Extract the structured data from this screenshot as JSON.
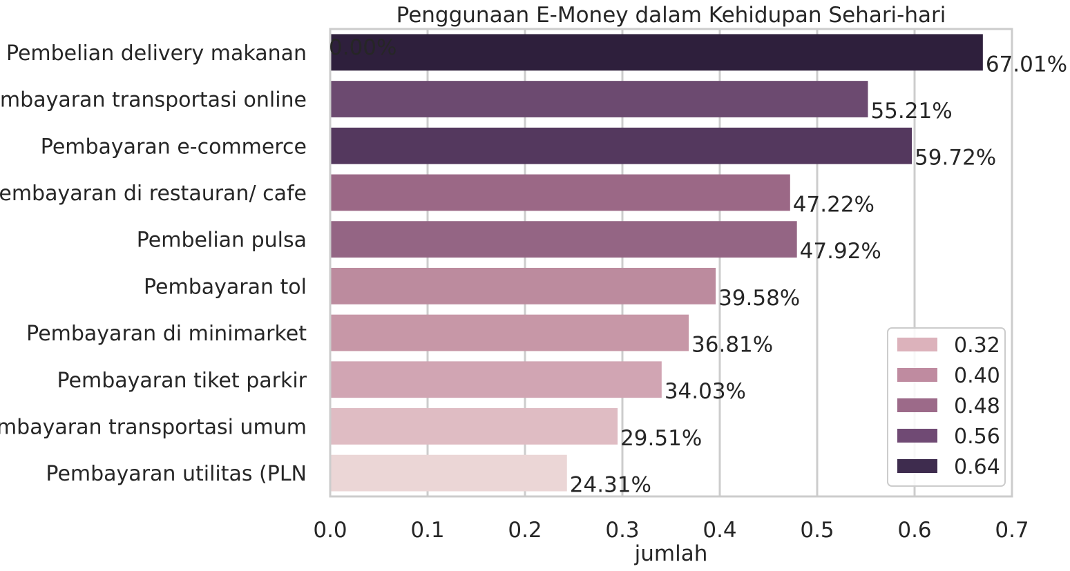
{
  "chart_data": {
    "type": "bar",
    "orientation": "horizontal",
    "title": "Penggunaan E-Money dalam Kehidupan Sehari-hari",
    "xlabel": "jumlah",
    "ylabel": "",
    "xlim": [
      0,
      0.7
    ],
    "x_ticks": [
      "0.0",
      "0.1",
      "0.2",
      "0.3",
      "0.4",
      "0.5",
      "0.6",
      "0.7"
    ],
    "grid": true,
    "categories": [
      "Pembelian delivery makanan",
      "Pembayaran transportasi online",
      "Pembayaran e-commerce",
      "Pembayaran di restauran/ cafe",
      "Pembelian pulsa",
      "Pembayaran tol",
      "Pembayaran di minimarket",
      "Pembayaran tiket parkir",
      "Pembayaran transportasi umum",
      "Pembayaran utilitas (PLN"
    ],
    "values": [
      0.6701,
      0.5521,
      0.5972,
      0.4722,
      0.4792,
      0.3958,
      0.3681,
      0.3403,
      0.2951,
      0.2431
    ],
    "bar_labels": [
      "67.01%",
      "55.21%",
      "59.72%",
      "47.22%",
      "47.92%",
      "39.58%",
      "36.81%",
      "34.03%",
      "29.51%",
      "24.31%"
    ],
    "extra_label": "0.00%",
    "bar_colors": [
      "#2e1f3c",
      "#6c4a70",
      "#54385e",
      "#9b6886",
      "#946584",
      "#bc8b9e",
      "#c797a7",
      "#d1a5b3",
      "#dfbcc3",
      "#ebd6d6"
    ],
    "legend": {
      "placement": "lower-right",
      "entries": [
        {
          "label": "0.32",
          "color": "#dcb2bb"
        },
        {
          "label": "0.40",
          "color": "#bf8ba0"
        },
        {
          "label": "0.48",
          "color": "#9c6a89"
        },
        {
          "label": "0.56",
          "color": "#704a74"
        },
        {
          "label": "0.64",
          "color": "#3e2c4e"
        }
      ]
    }
  }
}
